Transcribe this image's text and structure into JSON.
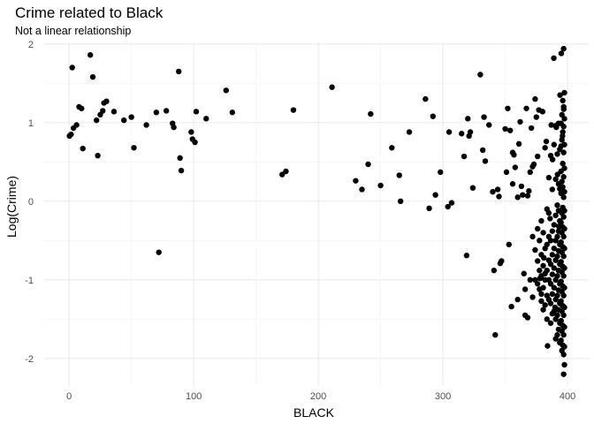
{
  "chart_data": {
    "type": "scatter",
    "title": "Crime related to Black",
    "subtitle": "Not a linear relationship",
    "xlabel": "BLACK",
    "ylabel": "Log(Crime)",
    "xlim": [
      -20,
      417
    ],
    "ylim": [
      -2.35,
      2.02
    ],
    "x_ticks": [
      0,
      100,
      200,
      300,
      400
    ],
    "x_tick_labels": [
      "0",
      "100",
      "200",
      "300",
      "400"
    ],
    "y_ticks": [
      -2,
      -1,
      0,
      1,
      2
    ],
    "y_tick_labels": [
      "-2",
      "-1",
      "0",
      "1",
      "2"
    ],
    "grid": true,
    "points": [
      [
        0.3,
        0.83
      ],
      [
        1.5,
        0.85
      ],
      [
        2.5,
        1.7
      ],
      [
        3.5,
        0.93
      ],
      [
        6,
        0.97
      ],
      [
        8,
        1.2
      ],
      [
        10,
        1.18
      ],
      [
        11,
        0.67
      ],
      [
        17,
        1.86
      ],
      [
        19,
        1.58
      ],
      [
        22,
        1.03
      ],
      [
        23,
        0.58
      ],
      [
        25,
        1.1
      ],
      [
        27,
        1.15
      ],
      [
        28,
        1.25
      ],
      [
        30,
        1.27
      ],
      [
        36,
        1.14
      ],
      [
        44,
        1.03
      ],
      [
        50,
        1.07
      ],
      [
        52,
        0.68
      ],
      [
        62,
        0.97
      ],
      [
        70,
        1.13
      ],
      [
        72,
        -0.65
      ],
      [
        78,
        1.15
      ],
      [
        83,
        0.99
      ],
      [
        84,
        0.94
      ],
      [
        88,
        1.65
      ],
      [
        89,
        0.55
      ],
      [
        90,
        0.39
      ],
      [
        98,
        0.88
      ],
      [
        99,
        0.79
      ],
      [
        101,
        0.75
      ],
      [
        102,
        1.14
      ],
      [
        110,
        1.05
      ],
      [
        126,
        1.41
      ],
      [
        131,
        1.13
      ],
      [
        171,
        0.34
      ],
      [
        174,
        0.38
      ],
      [
        180,
        1.16
      ],
      [
        211,
        1.45
      ],
      [
        230,
        0.26
      ],
      [
        235,
        0.15
      ],
      [
        240,
        0.47
      ],
      [
        242,
        1.11
      ],
      [
        250,
        0.2
      ],
      [
        259,
        0.68
      ],
      [
        265,
        0.33
      ],
      [
        266,
        0
      ],
      [
        273,
        0.88
      ],
      [
        286,
        1.3
      ],
      [
        289,
        -0.09
      ],
      [
        292,
        1.08
      ],
      [
        294,
        0.08
      ],
      [
        298,
        0.37
      ],
      [
        304,
        -0.07
      ],
      [
        305,
        0.88
      ],
      [
        307,
        -0.02
      ],
      [
        315,
        0.86
      ],
      [
        317,
        0.57
      ],
      [
        319,
        -0.69
      ],
      [
        320,
        1.05
      ],
      [
        321,
        0.83
      ],
      [
        322,
        0.88
      ],
      [
        324,
        0.17
      ],
      [
        330,
        1.61
      ],
      [
        332,
        0.65
      ],
      [
        333,
        1.07
      ],
      [
        334,
        0.51
      ],
      [
        337,
        0.97
      ],
      [
        340,
        0.12
      ],
      [
        341,
        -0.88
      ],
      [
        342,
        -1.7
      ],
      [
        344,
        0.15
      ],
      [
        345,
        0.06
      ],
      [
        346,
        -0.79
      ],
      [
        347,
        -0.76
      ],
      [
        350,
        0.92
      ],
      [
        351,
        0.37
      ],
      [
        352,
        1.18
      ],
      [
        353,
        -0.55
      ],
      [
        354,
        0.9
      ],
      [
        355,
        -1.34
      ],
      [
        356,
        0.62
      ],
      [
        357,
        0.59
      ],
      [
        358,
        0.43
      ],
      [
        360,
        0.05
      ],
      [
        361,
        0.73
      ],
      [
        362,
        1.01
      ],
      [
        363,
        0.19
      ],
      [
        364,
        0.08
      ],
      [
        365,
        -0.92
      ],
      [
        366,
        -1.45
      ],
      [
        367,
        1.18
      ],
      [
        368,
        0.07
      ],
      [
        369,
        0.13
      ],
      [
        370,
        0.37
      ],
      [
        371,
        0.93
      ],
      [
        372,
        0.44
      ],
      [
        373,
        0.47
      ],
      [
        374,
        1.3
      ],
      [
        375,
        1.07
      ],
      [
        376,
        0.57
      ],
      [
        377,
        1.16
      ],
      [
        378,
        -0.98
      ],
      [
        379,
        -1.27
      ],
      [
        380,
        1.14
      ],
      [
        381,
        -0.72
      ],
      [
        382,
        -0.92
      ],
      [
        383,
        0.76
      ],
      [
        384,
        -1.84
      ],
      [
        385,
        -0.15
      ],
      [
        386,
        -0.22
      ],
      [
        387,
        0.97
      ],
      [
        388,
        0.53
      ],
      [
        389,
        1.82
      ],
      [
        390,
        -1.35
      ],
      [
        391,
        0.94
      ],
      [
        392,
        0.34
      ],
      [
        393,
        -0.32
      ],
      [
        394,
        1.35
      ],
      [
        395,
        1.88
      ],
      [
        396,
        0.83
      ],
      [
        397,
        1.17
      ],
      [
        396.9,
        1.94
      ],
      [
        396.9,
        1.2
      ],
      [
        396.9,
        0.95
      ],
      [
        396.9,
        0.62
      ],
      [
        396.9,
        0.31
      ],
      [
        396.9,
        0.05
      ],
      [
        396.9,
        -0.2
      ],
      [
        396.9,
        -0.45
      ],
      [
        396.9,
        -0.7
      ],
      [
        396.9,
        -0.95
      ],
      [
        396.9,
        -1.2
      ],
      [
        396.9,
        -1.45
      ],
      [
        396.9,
        -1.7
      ],
      [
        396.9,
        -1.95
      ],
      [
        396.9,
        -2.2
      ],
      [
        397.5,
        1.38
      ],
      [
        397.5,
        1.05
      ],
      [
        397.5,
        0.72
      ],
      [
        397.5,
        0.42
      ],
      [
        397.5,
        0.12
      ],
      [
        397.5,
        -0.12
      ],
      [
        397.5,
        -0.35
      ],
      [
        397.5,
        -0.6
      ],
      [
        397.5,
        -0.85
      ],
      [
        397.5,
        -1.1
      ],
      [
        397.5,
        -1.35
      ],
      [
        397.5,
        -1.6
      ],
      [
        397.5,
        -1.85
      ],
      [
        397.5,
        -2.08
      ],
      [
        396.2,
        1.28
      ],
      [
        396.2,
        0.88
      ],
      [
        396.2,
        0.48
      ],
      [
        396.2,
        0.18
      ],
      [
        396.2,
        -0.08
      ],
      [
        396.2,
        -0.33
      ],
      [
        396.2,
        -0.58
      ],
      [
        396.2,
        -0.83
      ],
      [
        396.2,
        -1.08
      ],
      [
        396.2,
        -1.33
      ],
      [
        396.2,
        -1.58
      ],
      [
        396.2,
        -1.83
      ],
      [
        395.5,
        1.1
      ],
      [
        395.5,
        0.78
      ],
      [
        395.5,
        0.25
      ],
      [
        395.5,
        -0.15
      ],
      [
        395.5,
        -0.4
      ],
      [
        395.5,
        -0.65
      ],
      [
        395.5,
        -0.9
      ],
      [
        395.5,
        -1.15
      ],
      [
        395.5,
        -1.4
      ],
      [
        395.5,
        -1.65
      ],
      [
        395.5,
        -1.9
      ],
      [
        394.8,
        0.99
      ],
      [
        394.8,
        0.7
      ],
      [
        394.8,
        0.38
      ],
      [
        394.8,
        0.1
      ],
      [
        394.8,
        -0.27
      ],
      [
        394.8,
        -0.52
      ],
      [
        394.8,
        -0.77
      ],
      [
        394.8,
        -1.02
      ],
      [
        394.8,
        -1.27
      ],
      [
        394.8,
        -1.52
      ],
      [
        394.8,
        -1.77
      ],
      [
        393.8,
        0.66
      ],
      [
        393.8,
        0.16
      ],
      [
        393.8,
        -0.25
      ],
      [
        393.8,
        -0.55
      ],
      [
        393.8,
        -0.8
      ],
      [
        393.8,
        -1.05
      ],
      [
        393.8,
        -1.3
      ],
      [
        393.8,
        -1.55
      ],
      [
        393.8,
        -1.8
      ],
      [
        392.8,
        0.99
      ],
      [
        392.8,
        0.22
      ],
      [
        392.8,
        -0.12
      ],
      [
        392.8,
        -0.38
      ],
      [
        392.8,
        -0.63
      ],
      [
        392.8,
        -0.88
      ],
      [
        392.8,
        -1.13
      ],
      [
        392.8,
        -1.38
      ],
      [
        392.8,
        -1.63
      ],
      [
        391.8,
        0.6
      ],
      [
        391.8,
        -0.05
      ],
      [
        391.8,
        -0.45
      ],
      [
        391.8,
        -0.7
      ],
      [
        391.8,
        -0.95
      ],
      [
        391.8,
        -1.2
      ],
      [
        391.8,
        -1.45
      ],
      [
        391.8,
        -1.7
      ],
      [
        390.5,
        0.96
      ],
      [
        390.5,
        0.28
      ],
      [
        390.5,
        -0.18
      ],
      [
        390.5,
        -0.5
      ],
      [
        390.5,
        -0.75
      ],
      [
        390.5,
        -1.0
      ],
      [
        390.5,
        -1.25
      ],
      [
        390.5,
        -1.5
      ],
      [
        390.5,
        -1.75
      ],
      [
        389.2,
        0.72
      ],
      [
        389.2,
        -0.3
      ],
      [
        389.2,
        -0.6
      ],
      [
        389.2,
        -0.85
      ],
      [
        389.2,
        -1.1
      ],
      [
        389.2,
        -1.4
      ],
      [
        387.8,
        0.15
      ],
      [
        387.8,
        -0.38
      ],
      [
        387.8,
        -0.68
      ],
      [
        387.8,
        -0.93
      ],
      [
        387.8,
        -1.18
      ],
      [
        387.8,
        -1.43
      ],
      [
        386.5,
        0.58
      ],
      [
        386.5,
        -0.5
      ],
      [
        386.5,
        -0.8
      ],
      [
        386.5,
        -1.05
      ],
      [
        386.5,
        -1.3
      ],
      [
        386.5,
        -1.55
      ],
      [
        385,
        0.3
      ],
      [
        385,
        -0.45
      ],
      [
        385,
        -0.75
      ],
      [
        385,
        -1.0
      ],
      [
        385,
        -1.25
      ],
      [
        383.5,
        -0.1
      ],
      [
        383.5,
        -0.55
      ],
      [
        383.5,
        -0.88
      ],
      [
        383.5,
        -1.2
      ],
      [
        383.5,
        -1.5
      ],
      [
        382,
        0.68
      ],
      [
        382,
        -0.6
      ],
      [
        382,
        -1.0
      ],
      [
        382,
        -1.32
      ],
      [
        380.5,
        -0.4
      ],
      [
        380.5,
        -0.82
      ],
      [
        380.5,
        -1.1
      ],
      [
        380.5,
        -1.38
      ],
      [
        379,
        -0.25
      ],
      [
        379,
        -0.68
      ],
      [
        379,
        -0.95
      ],
      [
        379,
        -1.18
      ],
      [
        377.5,
        -0.5
      ],
      [
        377.5,
        -0.88
      ],
      [
        377.5,
        -1.12
      ],
      [
        376,
        -0.35
      ],
      [
        376,
        -0.76
      ],
      [
        376,
        -1.05
      ],
      [
        374,
        -0.62
      ],
      [
        374,
        -1.0
      ],
      [
        372,
        -0.45
      ],
      [
        372,
        -1.22
      ],
      [
        370,
        -1.0
      ],
      [
        368,
        -1.48
      ],
      [
        366,
        -1.12
      ],
      [
        360,
        -1.25
      ],
      [
        356,
        0.22
      ]
    ]
  }
}
